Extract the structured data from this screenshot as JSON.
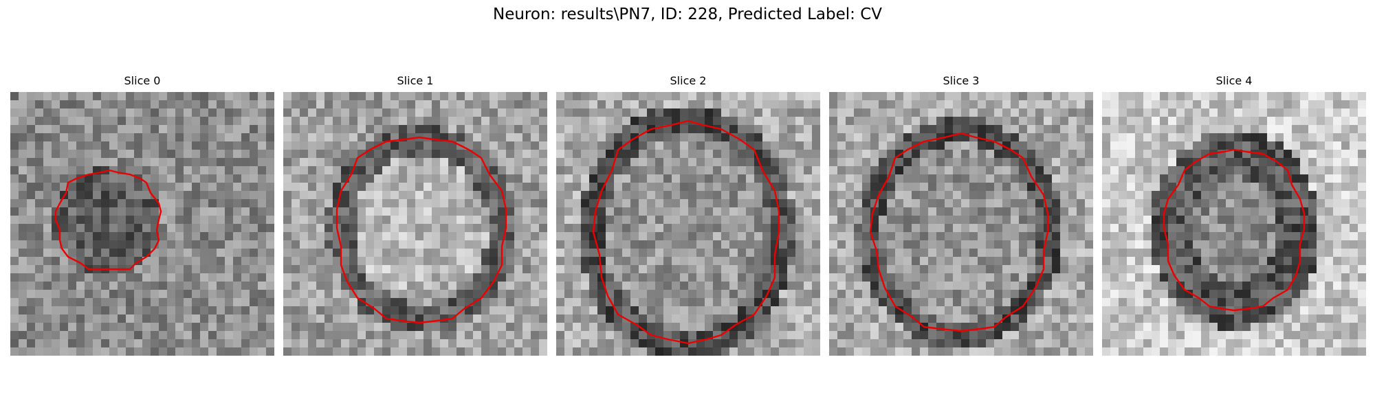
{
  "figure": {
    "title": "Neuron: results\\PN7, ID: 228, Predicted Label: CV"
  },
  "panels": [
    {
      "title": "Slice 0",
      "seed": 11,
      "contrast": "dark-center",
      "outline_size": "small"
    },
    {
      "title": "Slice 1",
      "seed": 23,
      "contrast": "bright-center",
      "outline_size": "large"
    },
    {
      "title": "Slice 2",
      "seed": 37,
      "contrast": "mid-center",
      "outline_size": "large"
    },
    {
      "title": "Slice 3",
      "seed": 41,
      "contrast": "mid-center",
      "outline_size": "large"
    },
    {
      "title": "Slice 4",
      "seed": 53,
      "contrast": "dark-ring",
      "outline_size": "medium"
    }
  ],
  "colors": {
    "outline": "#ee0000",
    "background": "#ffffff"
  },
  "colormap": "gray"
}
